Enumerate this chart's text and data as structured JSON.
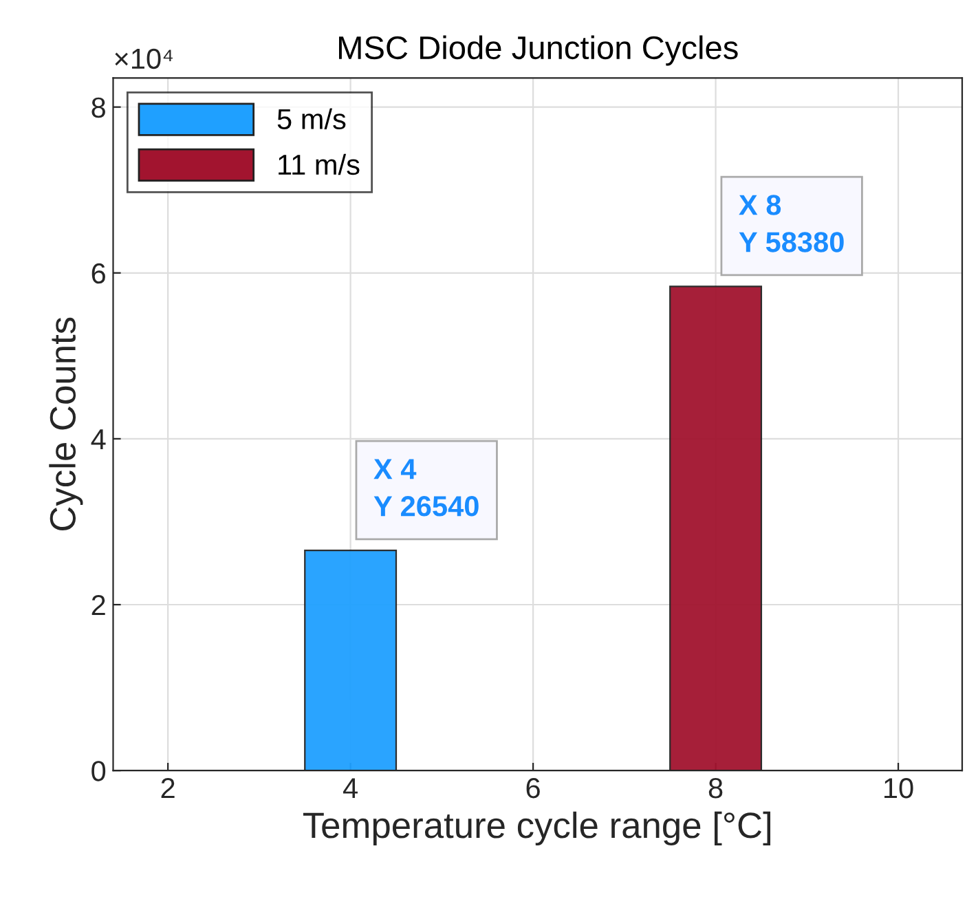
{
  "chart_data": {
    "type": "bar",
    "title": "MSC Diode Junction Cycles",
    "xlabel": "Temperature cycle range [°C]",
    "ylabel": "Cycle Counts",
    "series": [
      {
        "name": "5 m/s",
        "color": "#1fa0ff",
        "x": [
          4
        ],
        "values": [
          2.654
        ]
      },
      {
        "name": "11 m/s",
        "color": "#a2142f",
        "x": [
          8
        ],
        "values": [
          5.838
        ]
      }
    ],
    "xlim": [
      1.4,
      10.7
    ],
    "xticks": [
      2,
      4,
      6,
      8,
      10
    ],
    "ylim": [
      0,
      8.35
    ],
    "yticks": [
      0,
      2,
      4,
      6,
      8
    ],
    "annotations": [
      "×10⁴",
      {
        "text": "X 4\nY 26540",
        "x": 4,
        "y": 2.654
      },
      {
        "text": "X 8\nY 58380",
        "x": 8,
        "y": 5.838
      }
    ],
    "grid": true,
    "legend": "top left"
  }
}
